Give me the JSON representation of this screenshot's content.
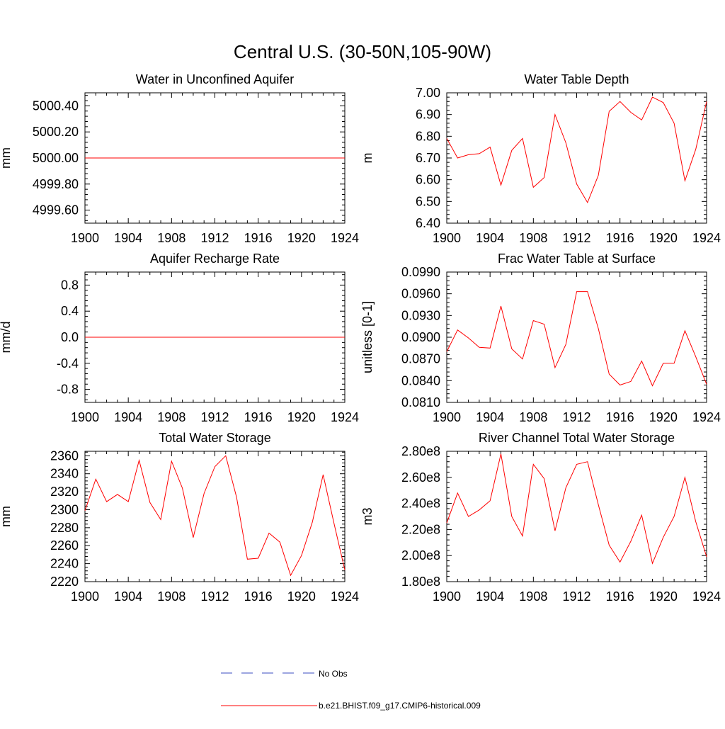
{
  "figure": {
    "title": "Central U.S. (30-50N,105-90W)"
  },
  "legend": {
    "obs_label": "No Obs",
    "model_label": "b.e21.BHIST.f09_g17.CMIP6-historical.009",
    "obs_color": "#3b4cc0",
    "model_color": "#ff0000"
  },
  "chart_data": [
    {
      "type": "line",
      "title": "Water in Unconfined Aquifer",
      "ylabel": "mm",
      "xlim": [
        1900,
        1924
      ],
      "ylim": [
        4999.5,
        5000.5
      ],
      "xticks": [
        1900,
        1904,
        1908,
        1912,
        1916,
        1920,
        1924
      ],
      "xticklabels": [
        "1900",
        "1904",
        "1908",
        "1912",
        "1916",
        "1920",
        "1924"
      ],
      "yticks": [
        4999.6,
        4999.8,
        5000.0,
        5000.2,
        5000.4
      ],
      "yticklabels": [
        "4999.60",
        "4999.80",
        "5000.00",
        "5000.20",
        "5000.40"
      ],
      "x": [
        1900,
        1901,
        1902,
        1903,
        1904,
        1905,
        1906,
        1907,
        1908,
        1909,
        1910,
        1911,
        1912,
        1913,
        1914,
        1915,
        1916,
        1917,
        1918,
        1919,
        1920,
        1921,
        1922,
        1923,
        1924
      ],
      "series": [
        {
          "values": [
            5000,
            5000,
            5000,
            5000,
            5000,
            5000,
            5000,
            5000,
            5000,
            5000,
            5000,
            5000,
            5000,
            5000,
            5000,
            5000,
            5000,
            5000,
            5000,
            5000,
            5000,
            5000,
            5000,
            5000,
            5000
          ]
        }
      ]
    },
    {
      "type": "line",
      "title": "Water Table Depth",
      "ylabel": "m",
      "xlim": [
        1900,
        1924
      ],
      "ylim": [
        6.4,
        7.0
      ],
      "xticks": [
        1900,
        1904,
        1908,
        1912,
        1916,
        1920,
        1924
      ],
      "xticklabels": [
        "1900",
        "1904",
        "1908",
        "1912",
        "1916",
        "1920",
        "1924"
      ],
      "yticks": [
        6.4,
        6.5,
        6.6,
        6.7,
        6.8,
        6.9,
        7.0
      ],
      "yticklabels": [
        "6.40",
        "6.50",
        "6.60",
        "6.70",
        "6.80",
        "6.90",
        "7.00"
      ],
      "x": [
        1900,
        1901,
        1902,
        1903,
        1904,
        1905,
        1906,
        1907,
        1908,
        1909,
        1910,
        1911,
        1912,
        1913,
        1914,
        1915,
        1916,
        1917,
        1918,
        1919,
        1920,
        1921,
        1922,
        1923,
        1924
      ],
      "series": [
        {
          "values": [
            6.79,
            6.7,
            6.715,
            6.72,
            6.75,
            6.575,
            6.735,
            6.79,
            6.565,
            6.61,
            6.9,
            6.77,
            6.58,
            6.495,
            6.62,
            6.915,
            6.96,
            6.91,
            6.875,
            6.98,
            6.955,
            6.86,
            6.595,
            6.74,
            6.96
          ]
        }
      ]
    },
    {
      "type": "line",
      "title": "Aquifer Recharge Rate",
      "ylabel": "mm/d",
      "xlim": [
        1900,
        1924
      ],
      "ylim": [
        -1.0,
        1.0
      ],
      "xticks": [
        1900,
        1904,
        1908,
        1912,
        1916,
        1920,
        1924
      ],
      "xticklabels": [
        "1900",
        "1904",
        "1908",
        "1912",
        "1916",
        "1920",
        "1924"
      ],
      "yticks": [
        -0.8,
        -0.4,
        0.0,
        0.4,
        0.8
      ],
      "yticklabels": [
        "-0.8",
        "-0.4",
        "0.0",
        "0.4",
        "0.8"
      ],
      "x": [
        1900,
        1901,
        1902,
        1903,
        1904,
        1905,
        1906,
        1907,
        1908,
        1909,
        1910,
        1911,
        1912,
        1913,
        1914,
        1915,
        1916,
        1917,
        1918,
        1919,
        1920,
        1921,
        1922,
        1923,
        1924
      ],
      "series": [
        {
          "values": [
            0,
            0,
            0,
            0,
            0,
            0,
            0,
            0,
            0,
            0,
            0,
            0,
            0,
            0,
            0,
            0,
            0,
            0,
            0,
            0,
            0,
            0,
            0,
            0,
            0
          ]
        }
      ]
    },
    {
      "type": "line",
      "title": "Frac Water Table at Surface",
      "ylabel": "unitless [0-1]",
      "xlim": [
        1900,
        1924
      ],
      "ylim": [
        0.081,
        0.099
      ],
      "xticks": [
        1900,
        1904,
        1908,
        1912,
        1916,
        1920,
        1924
      ],
      "xticklabels": [
        "1900",
        "1904",
        "1908",
        "1912",
        "1916",
        "1920",
        "1924"
      ],
      "yticks": [
        0.081,
        0.084,
        0.087,
        0.09,
        0.093,
        0.096,
        0.099
      ],
      "yticklabels": [
        "0.0810",
        "0.0840",
        "0.0870",
        "0.0900",
        "0.0930",
        "0.0960",
        "0.0990"
      ],
      "x": [
        1900,
        1901,
        1902,
        1903,
        1904,
        1905,
        1906,
        1907,
        1908,
        1909,
        1910,
        1911,
        1912,
        1913,
        1914,
        1915,
        1916,
        1917,
        1918,
        1919,
        1920,
        1921,
        1922,
        1923,
        1924
      ],
      "series": [
        {
          "values": [
            0.088,
            0.091,
            0.0899,
            0.0886,
            0.0885,
            0.0943,
            0.0884,
            0.087,
            0.0923,
            0.0918,
            0.0858,
            0.089,
            0.0963,
            0.0963,
            0.0912,
            0.0849,
            0.0834,
            0.0839,
            0.0867,
            0.0833,
            0.0864,
            0.0864,
            0.0909,
            0.0873,
            0.0835
          ]
        }
      ]
    },
    {
      "type": "line",
      "title": "Total Water Storage",
      "ylabel": "mm",
      "xlim": [
        1900,
        1924
      ],
      "ylim": [
        2220,
        2365
      ],
      "xticks": [
        1900,
        1904,
        1908,
        1912,
        1916,
        1920,
        1924
      ],
      "xticklabels": [
        "1900",
        "1904",
        "1908",
        "1912",
        "1916",
        "1920",
        "1924"
      ],
      "yticks": [
        2220,
        2240,
        2260,
        2280,
        2300,
        2320,
        2340,
        2360
      ],
      "yticklabels": [
        "2220",
        "2240",
        "2260",
        "2280",
        "2300",
        "2320",
        "2340",
        "2360"
      ],
      "x": [
        1900,
        1901,
        1902,
        1903,
        1904,
        1905,
        1906,
        1907,
        1908,
        1909,
        1910,
        1911,
        1912,
        1913,
        1914,
        1915,
        1916,
        1917,
        1918,
        1919,
        1920,
        1921,
        1922,
        1923,
        1924
      ],
      "series": [
        {
          "values": [
            2299,
            2334,
            2309,
            2317,
            2309,
            2355,
            2308,
            2289,
            2354,
            2324,
            2269,
            2318,
            2348,
            2360,
            2314,
            2245,
            2246,
            2274,
            2264,
            2227,
            2249,
            2286,
            2339,
            2285,
            2233
          ]
        }
      ]
    },
    {
      "type": "line",
      "title": "River Channel Total Water Storage",
      "ylabel": "m3",
      "xlim": [
        1900,
        1924
      ],
      "ylim": [
        180000000.0,
        280000000.0
      ],
      "xticks": [
        1900,
        1904,
        1908,
        1912,
        1916,
        1920,
        1924
      ],
      "xticklabels": [
        "1900",
        "1904",
        "1908",
        "1912",
        "1916",
        "1920",
        "1924"
      ],
      "yticks": [
        180000000.0,
        200000000.0,
        220000000.0,
        240000000.0,
        260000000.0,
        280000000.0
      ],
      "yticklabels": [
        "1.80e8",
        "2.00e8",
        "2.20e8",
        "2.40e8",
        "2.60e8",
        "2.80e8"
      ],
      "x": [
        1900,
        1901,
        1902,
        1903,
        1904,
        1905,
        1906,
        1907,
        1908,
        1909,
        1910,
        1911,
        1912,
        1913,
        1914,
        1915,
        1916,
        1917,
        1918,
        1919,
        1920,
        1921,
        1922,
        1923,
        1924
      ],
      "series": [
        {
          "values": [
            225000000.0,
            248000000.0,
            230000000.0,
            235000000.0,
            242000000.0,
            278000000.0,
            230000000.0,
            215000000.0,
            270000000.0,
            259000000.0,
            219000000.0,
            252000000.0,
            270000000.0,
            272000000.0,
            239000000.0,
            208000000.0,
            195000000.0,
            211000000.0,
            231000000.0,
            194000000.0,
            214000000.0,
            230000000.0,
            260000000.0,
            226000000.0,
            199000000.0
          ]
        }
      ]
    }
  ]
}
